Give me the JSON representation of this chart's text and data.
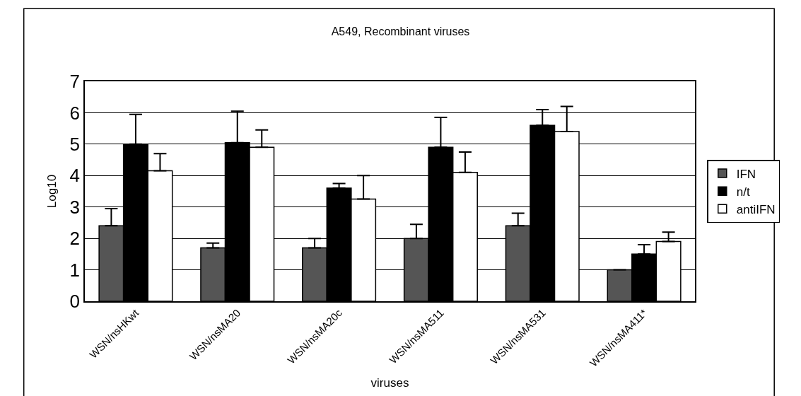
{
  "chart_data": {
    "type": "bar",
    "title": "A549, Recombinant viruses",
    "xlabel": "viruses",
    "ylabel": "Log10",
    "categories": [
      "WSN/nsHKwt",
      "WSN/nsMA20",
      "WSN/nsMA20c",
      "WSN/nsMA511",
      "WSN/nsMA531",
      "WSN/nsMA411*"
    ],
    "series": [
      {
        "name": "IFN",
        "color": "#555555",
        "values": [
          2.4,
          1.7,
          1.7,
          2.0,
          2.4,
          1.0
        ],
        "errors": [
          [
            2.4,
            2.95
          ],
          [
            1.7,
            1.85
          ],
          [
            1.7,
            2.0
          ],
          [
            2.0,
            2.45
          ],
          [
            2.4,
            2.8
          ],
          null
        ]
      },
      {
        "name": "n/t",
        "color": "#000000",
        "values": [
          5.0,
          5.05,
          3.6,
          4.9,
          5.6,
          1.5
        ],
        "errors": [
          [
            5.0,
            5.95
          ],
          [
            5.05,
            6.05
          ],
          [
            3.6,
            3.75
          ],
          [
            4.9,
            5.85
          ],
          [
            5.6,
            6.1
          ],
          [
            1.5,
            1.8
          ]
        ]
      },
      {
        "name": "antiIFN",
        "color": "#ffffff",
        "values": [
          4.15,
          4.9,
          3.25,
          4.1,
          5.4,
          1.9
        ],
        "errors": [
          [
            4.15,
            4.7
          ],
          [
            4.9,
            5.45
          ],
          [
            3.25,
            4.0
          ],
          [
            4.1,
            4.75
          ],
          [
            5.4,
            6.2
          ],
          [
            1.9,
            2.2
          ]
        ]
      }
    ],
    "ylim": [
      0,
      7
    ],
    "yticks": [
      0,
      1,
      2,
      3,
      4,
      5,
      6,
      7
    ],
    "grid": "y",
    "legend": "right"
  }
}
